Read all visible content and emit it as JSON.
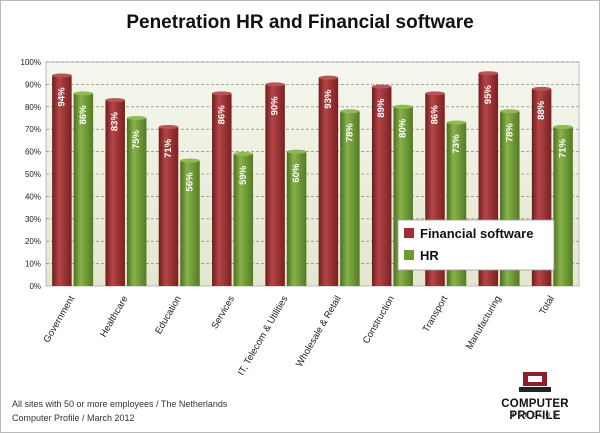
{
  "page": {
    "footer_line1": "All sites with 50 or more employees / The Netherlands",
    "footer_line2": "Computer Profile / March 2012",
    "logo": {
      "main_text": "COMPUTER PROFILE",
      "sub_text": "BENELUX",
      "colors": {
        "mark": "#8e1d2b",
        "mark_dark": "#222222"
      }
    }
  },
  "chart_data": {
    "type": "bar",
    "title": "Penetration HR and Financial software",
    "xlabel": "",
    "ylabel": "",
    "categories": [
      "Government",
      "Healthcare",
      "Education",
      "Services",
      "IT, Telecom & Utilities",
      "Wholesale & Retail",
      "Construction",
      "Transport",
      "Manufacturing",
      "Total"
    ],
    "series": [
      {
        "name": "Financial software",
        "values": [
          94,
          83,
          71,
          86,
          90,
          93,
          89,
          86,
          95,
          88
        ],
        "labels": [
          "94%",
          "83%",
          "71%",
          "86%",
          "90%",
          "93%",
          "89%",
          "86%",
          "95%",
          "88%"
        ],
        "color": "#9b2f31"
      },
      {
        "name": "HR",
        "values": [
          86,
          75,
          56,
          59,
          60,
          78,
          80,
          73,
          78,
          71
        ],
        "labels": [
          "86%",
          "75%",
          "56%",
          "59%",
          "60%",
          "78%",
          "80%",
          "73%",
          "78%",
          "71%"
        ],
        "color": "#6f9a32"
      }
    ],
    "ylim": [
      0,
      100
    ],
    "yticks": [
      "0%",
      "10%",
      "20%",
      "30%",
      "40%",
      "50%",
      "60%",
      "70%",
      "80%",
      "90%",
      "100%"
    ],
    "grid": true,
    "legend": "right",
    "colors": {
      "plot_background": "#eef0df",
      "gridline": "#777777"
    }
  }
}
